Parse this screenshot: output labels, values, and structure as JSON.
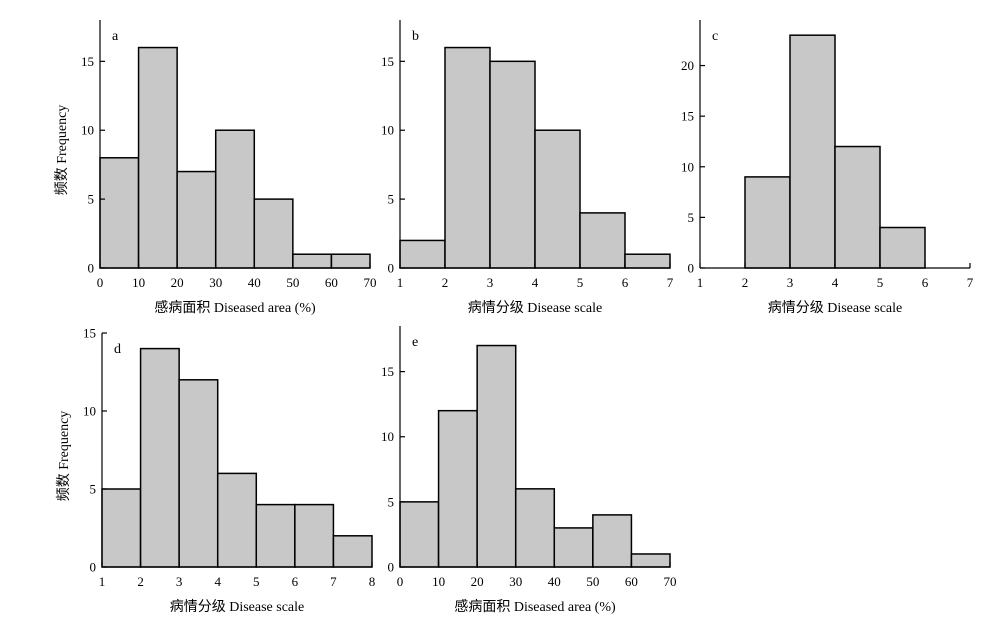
{
  "colors": {
    "bar_fill": "#c8c8c8",
    "bar_stroke": "#000000",
    "axis": "#000000"
  },
  "chart_data": [
    {
      "panel": "a",
      "type": "bar",
      "xlabel": "感病面积 Diseased area (%)",
      "ylabel": "频数 Frequency",
      "xlim": [
        0,
        70
      ],
      "ylim": [
        0,
        18
      ],
      "xticks": [
        0,
        10,
        20,
        30,
        40,
        50,
        60,
        70
      ],
      "yticks": [
        0,
        5,
        10,
        15
      ],
      "bins": [
        [
          0,
          10
        ],
        [
          10,
          20
        ],
        [
          20,
          30
        ],
        [
          30,
          40
        ],
        [
          40,
          50
        ],
        [
          50,
          60
        ],
        [
          60,
          70
        ]
      ],
      "values": [
        8,
        16,
        7,
        10,
        5,
        1,
        1
      ]
    },
    {
      "panel": "b",
      "type": "bar",
      "xlabel": "病情分级 Disease scale",
      "ylabel": "",
      "xlim": [
        1,
        7
      ],
      "ylim": [
        0,
        18
      ],
      "xticks": [
        1,
        2,
        3,
        4,
        5,
        6,
        7
      ],
      "yticks": [
        0,
        5,
        10,
        15
      ],
      "bins": [
        [
          1,
          2
        ],
        [
          2,
          3
        ],
        [
          3,
          4
        ],
        [
          4,
          5
        ],
        [
          5,
          6
        ],
        [
          6,
          7
        ]
      ],
      "values": [
        2,
        16,
        15,
        10,
        4,
        1
      ]
    },
    {
      "panel": "c",
      "type": "bar",
      "xlabel": "病情分级 Disease scale",
      "ylabel": "",
      "xlim": [
        1,
        7
      ],
      "ylim": [
        0,
        24.5
      ],
      "xticks": [
        1,
        2,
        3,
        4,
        5,
        6,
        7
      ],
      "yticks": [
        0,
        5,
        10,
        15,
        20
      ],
      "bins": [
        [
          2,
          3
        ],
        [
          3,
          4
        ],
        [
          4,
          5
        ],
        [
          5,
          6
        ]
      ],
      "values": [
        9,
        23,
        12,
        4
      ]
    },
    {
      "panel": "d",
      "type": "bar",
      "xlabel": "病情分级 Disease scale",
      "ylabel": "频数 Frequency",
      "xlim": [
        1,
        8
      ],
      "ylim": [
        0,
        15
      ],
      "xticks": [
        1,
        2,
        3,
        4,
        5,
        6,
        7,
        8
      ],
      "yticks": [
        0,
        5,
        10,
        15
      ],
      "bins": [
        [
          1,
          2
        ],
        [
          2,
          3
        ],
        [
          3,
          4
        ],
        [
          4,
          5
        ],
        [
          5,
          6
        ],
        [
          6,
          7
        ],
        [
          7,
          8
        ]
      ],
      "values": [
        5,
        14,
        12,
        6,
        4,
        4,
        2
      ]
    },
    {
      "panel": "e",
      "type": "bar",
      "xlabel": "感病面积 Diseased area (%)",
      "ylabel": "",
      "xlim": [
        0,
        70
      ],
      "ylim": [
        0,
        18.5
      ],
      "xticks": [
        0,
        10,
        20,
        30,
        40,
        50,
        60,
        70
      ],
      "yticks": [
        0,
        5,
        10,
        15
      ],
      "bins": [
        [
          0,
          10
        ],
        [
          10,
          20
        ],
        [
          20,
          30
        ],
        [
          30,
          40
        ],
        [
          40,
          50
        ],
        [
          50,
          60
        ],
        [
          60,
          70
        ]
      ],
      "values": [
        5,
        12,
        17,
        6,
        3,
        4,
        1
      ]
    }
  ]
}
